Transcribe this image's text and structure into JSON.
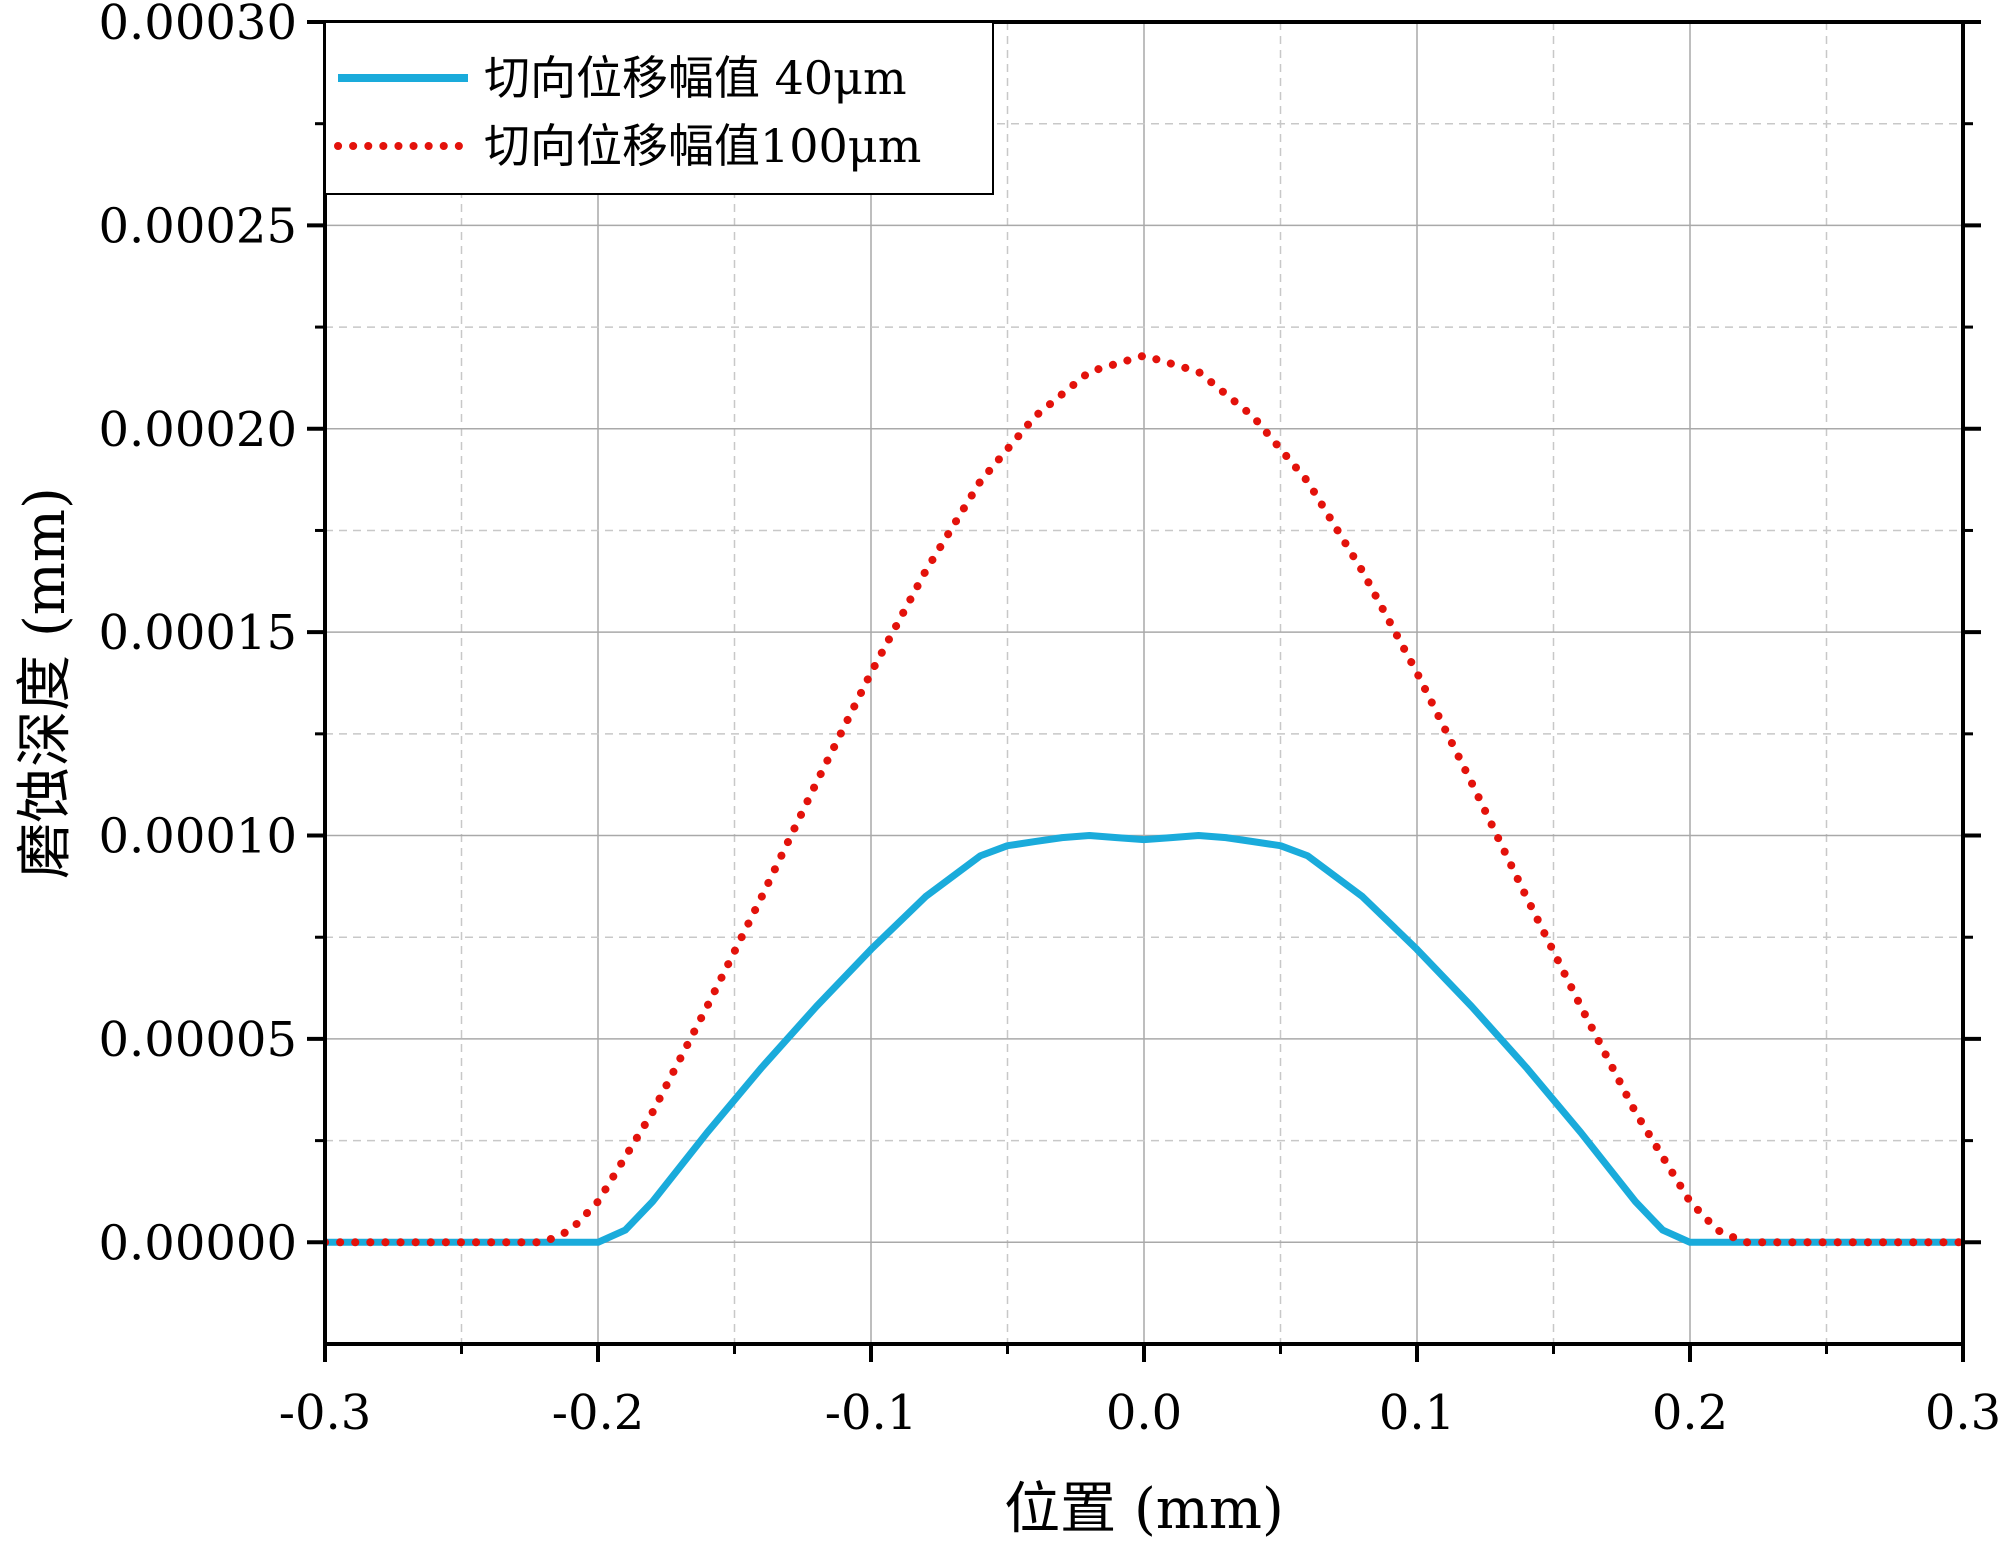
{
  "chart_data": {
    "type": "line",
    "title": "",
    "xlabel": "位置 (mm)",
    "ylabel": "磨蚀深度 (mm)",
    "xlim": [
      -0.3,
      0.3
    ],
    "ylim": [
      -2.5e-05,
      0.0003
    ],
    "x_ticks": [
      -0.3,
      -0.2,
      -0.1,
      0.0,
      0.1,
      0.2,
      0.3
    ],
    "x_tick_labels": [
      "-0.3",
      "-0.2",
      "-0.1",
      "0.0",
      "0.1",
      "0.2",
      "0.3"
    ],
    "y_ticks": [
      0,
      5e-05,
      0.0001,
      0.00015,
      0.0002,
      0.00025,
      0.0003
    ],
    "y_tick_labels": [
      "0.00000",
      "0.00005",
      "0.00010",
      "0.00015",
      "0.00020",
      "0.00025",
      "0.00030"
    ],
    "grid": true,
    "legend_position": "top-left",
    "series": [
      {
        "name": "切向位移幅值 40μm",
        "color": "#1AABDB",
        "style": "solid",
        "x": [
          -0.3,
          -0.21,
          -0.2,
          -0.19,
          -0.18,
          -0.16,
          -0.14,
          -0.12,
          -0.1,
          -0.08,
          -0.06,
          -0.05,
          -0.04,
          -0.03,
          -0.02,
          -0.01,
          0.0,
          0.01,
          0.02,
          0.03,
          0.04,
          0.05,
          0.06,
          0.08,
          0.1,
          0.12,
          0.14,
          0.16,
          0.18,
          0.19,
          0.2,
          0.21,
          0.3
        ],
        "y": [
          0,
          0,
          0,
          3e-06,
          1e-05,
          2.7e-05,
          4.3e-05,
          5.8e-05,
          7.2e-05,
          8.5e-05,
          9.5e-05,
          9.75e-05,
          9.85e-05,
          9.95e-05,
          0.0001,
          9.95e-05,
          9.9e-05,
          9.95e-05,
          0.0001,
          9.95e-05,
          9.85e-05,
          9.75e-05,
          9.5e-05,
          8.5e-05,
          7.2e-05,
          5.8e-05,
          4.3e-05,
          2.7e-05,
          1e-05,
          3e-06,
          0,
          0,
          0
        ]
      },
      {
        "name": "切向位移幅值100μm",
        "color": "#E3120B",
        "style": "dotted",
        "x": [
          -0.3,
          -0.22,
          -0.21,
          -0.2,
          -0.18,
          -0.16,
          -0.14,
          -0.12,
          -0.1,
          -0.08,
          -0.06,
          -0.04,
          -0.02,
          0.0,
          0.02,
          0.04,
          0.06,
          0.08,
          0.1,
          0.12,
          0.14,
          0.16,
          0.18,
          0.2,
          0.21,
          0.22,
          0.3
        ],
        "y": [
          0,
          0,
          3e-06,
          1e-05,
          3.2e-05,
          5.8e-05,
          8.5e-05,
          0.000113,
          0.00014,
          0.000165,
          0.000187,
          0.000203,
          0.000214,
          0.000218,
          0.000214,
          0.000203,
          0.000187,
          0.000165,
          0.00014,
          0.000113,
          8.5e-05,
          5.8e-05,
          3.2e-05,
          1e-05,
          3e-06,
          0,
          0
        ]
      }
    ]
  }
}
